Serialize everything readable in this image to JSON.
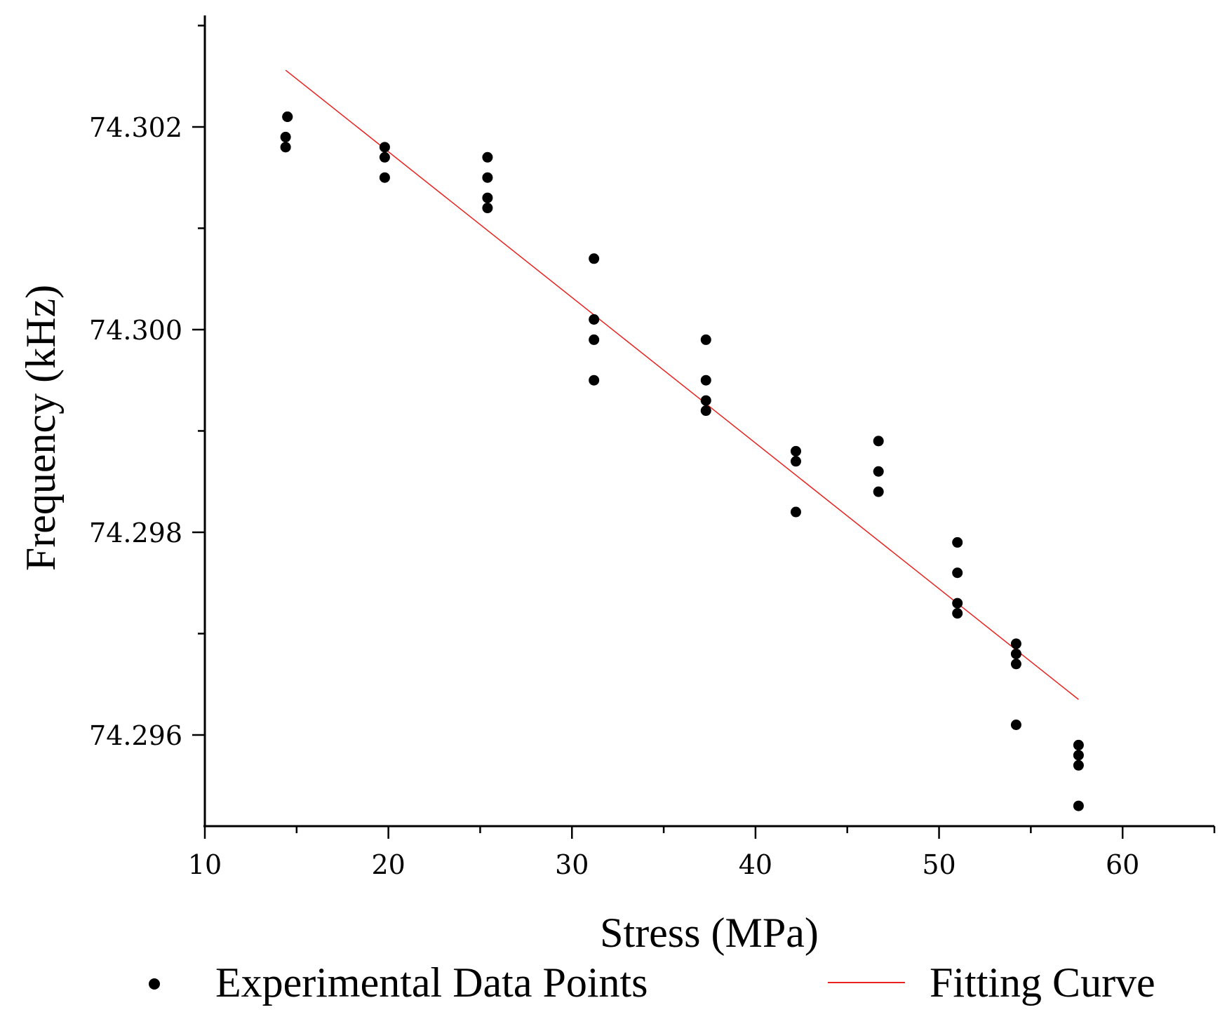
{
  "chart_data": {
    "type": "scatter",
    "title": "",
    "xlabel": "Stress (MPa)",
    "ylabel": "Frequency (kHz)",
    "xlim": [
      10,
      65
    ],
    "ylim": [
      74.2951,
      74.3031
    ],
    "xticks": [
      10,
      20,
      30,
      40,
      50,
      60
    ],
    "xtick_labels": [
      "10",
      "20",
      "30",
      "40",
      "50",
      "60"
    ],
    "yticks": [
      74.296,
      74.298,
      74.3,
      74.302
    ],
    "ytick_labels": [
      "74.296",
      "74.298",
      "74.300",
      "74.302"
    ],
    "grid": false,
    "legend_position": "bottom",
    "colors": {
      "points": "#000000",
      "fit": "#e8231f",
      "axis": "#000000"
    },
    "series": [
      {
        "name": "Experimental Data Points",
        "type": "scatter",
        "points": [
          [
            14.5,
            74.3021
          ],
          [
            14.5,
            74.3021
          ],
          [
            14.4,
            74.3019
          ],
          [
            14.4,
            74.3018
          ],
          [
            19.8,
            74.3018
          ],
          [
            19.8,
            74.3017
          ],
          [
            19.8,
            74.3015
          ],
          [
            25.4,
            74.3017
          ],
          [
            25.4,
            74.3015
          ],
          [
            25.4,
            74.3013
          ],
          [
            25.4,
            74.3012
          ],
          [
            31.2,
            74.3007
          ],
          [
            31.2,
            74.3001
          ],
          [
            31.2,
            74.2999
          ],
          [
            31.2,
            74.2995
          ],
          [
            37.3,
            74.2999
          ],
          [
            37.3,
            74.2995
          ],
          [
            37.3,
            74.2993
          ],
          [
            37.3,
            74.2992
          ],
          [
            42.2,
            74.2988
          ],
          [
            42.2,
            74.2987
          ],
          [
            42.2,
            74.2982
          ],
          [
            46.7,
            74.2989
          ],
          [
            46.7,
            74.2986
          ],
          [
            46.7,
            74.2984
          ],
          [
            51.0,
            74.2979
          ],
          [
            51.0,
            74.2976
          ],
          [
            51.0,
            74.2973
          ],
          [
            51.0,
            74.2972
          ],
          [
            54.2,
            74.2969
          ],
          [
            54.2,
            74.2968
          ],
          [
            54.2,
            74.2967
          ],
          [
            54.2,
            74.2961
          ],
          [
            57.6,
            74.2959
          ],
          [
            57.6,
            74.2958
          ],
          [
            57.6,
            74.2957
          ],
          [
            57.6,
            74.2953
          ]
        ]
      },
      {
        "name": "Fitting Curve",
        "type": "line",
        "points": [
          [
            14.4,
            74.30256
          ],
          [
            57.6,
            74.29635
          ]
        ]
      }
    ]
  }
}
